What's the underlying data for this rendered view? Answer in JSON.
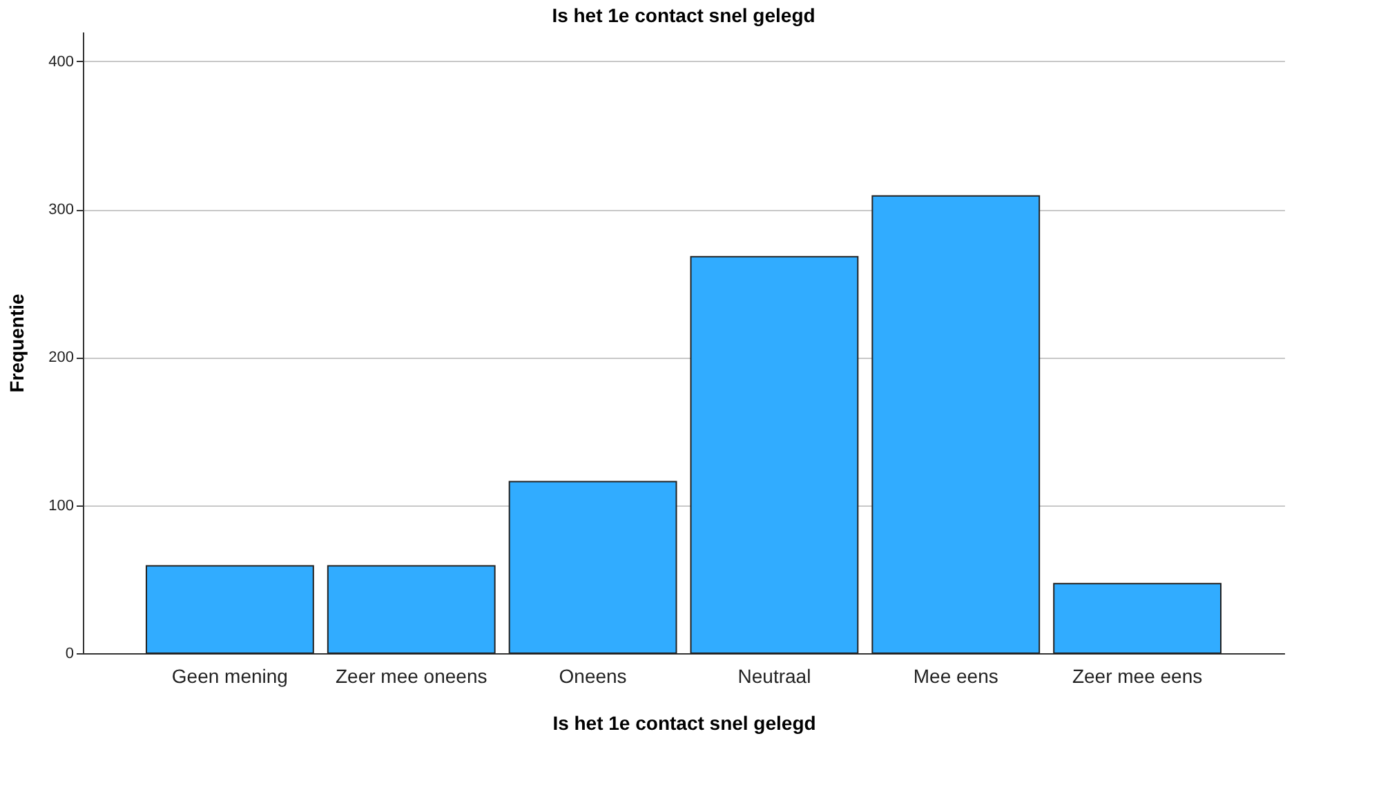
{
  "chart_data": {
    "type": "bar",
    "title": "Is het 1e contact snel gelegd",
    "xlabel": "Is het 1e contact snel gelegd",
    "ylabel": "Frequentie",
    "categories": [
      "Geen mening",
      "Zeer mee oneens",
      "Oneens",
      "Neutraal",
      "Mee eens",
      "Zeer mee eens"
    ],
    "values": [
      59,
      59,
      116,
      268,
      309,
      47
    ],
    "color": "#31acff",
    "ylim": [
      0,
      420
    ],
    "yticks": [
      0,
      100,
      200,
      300,
      400
    ],
    "grid": "y"
  }
}
